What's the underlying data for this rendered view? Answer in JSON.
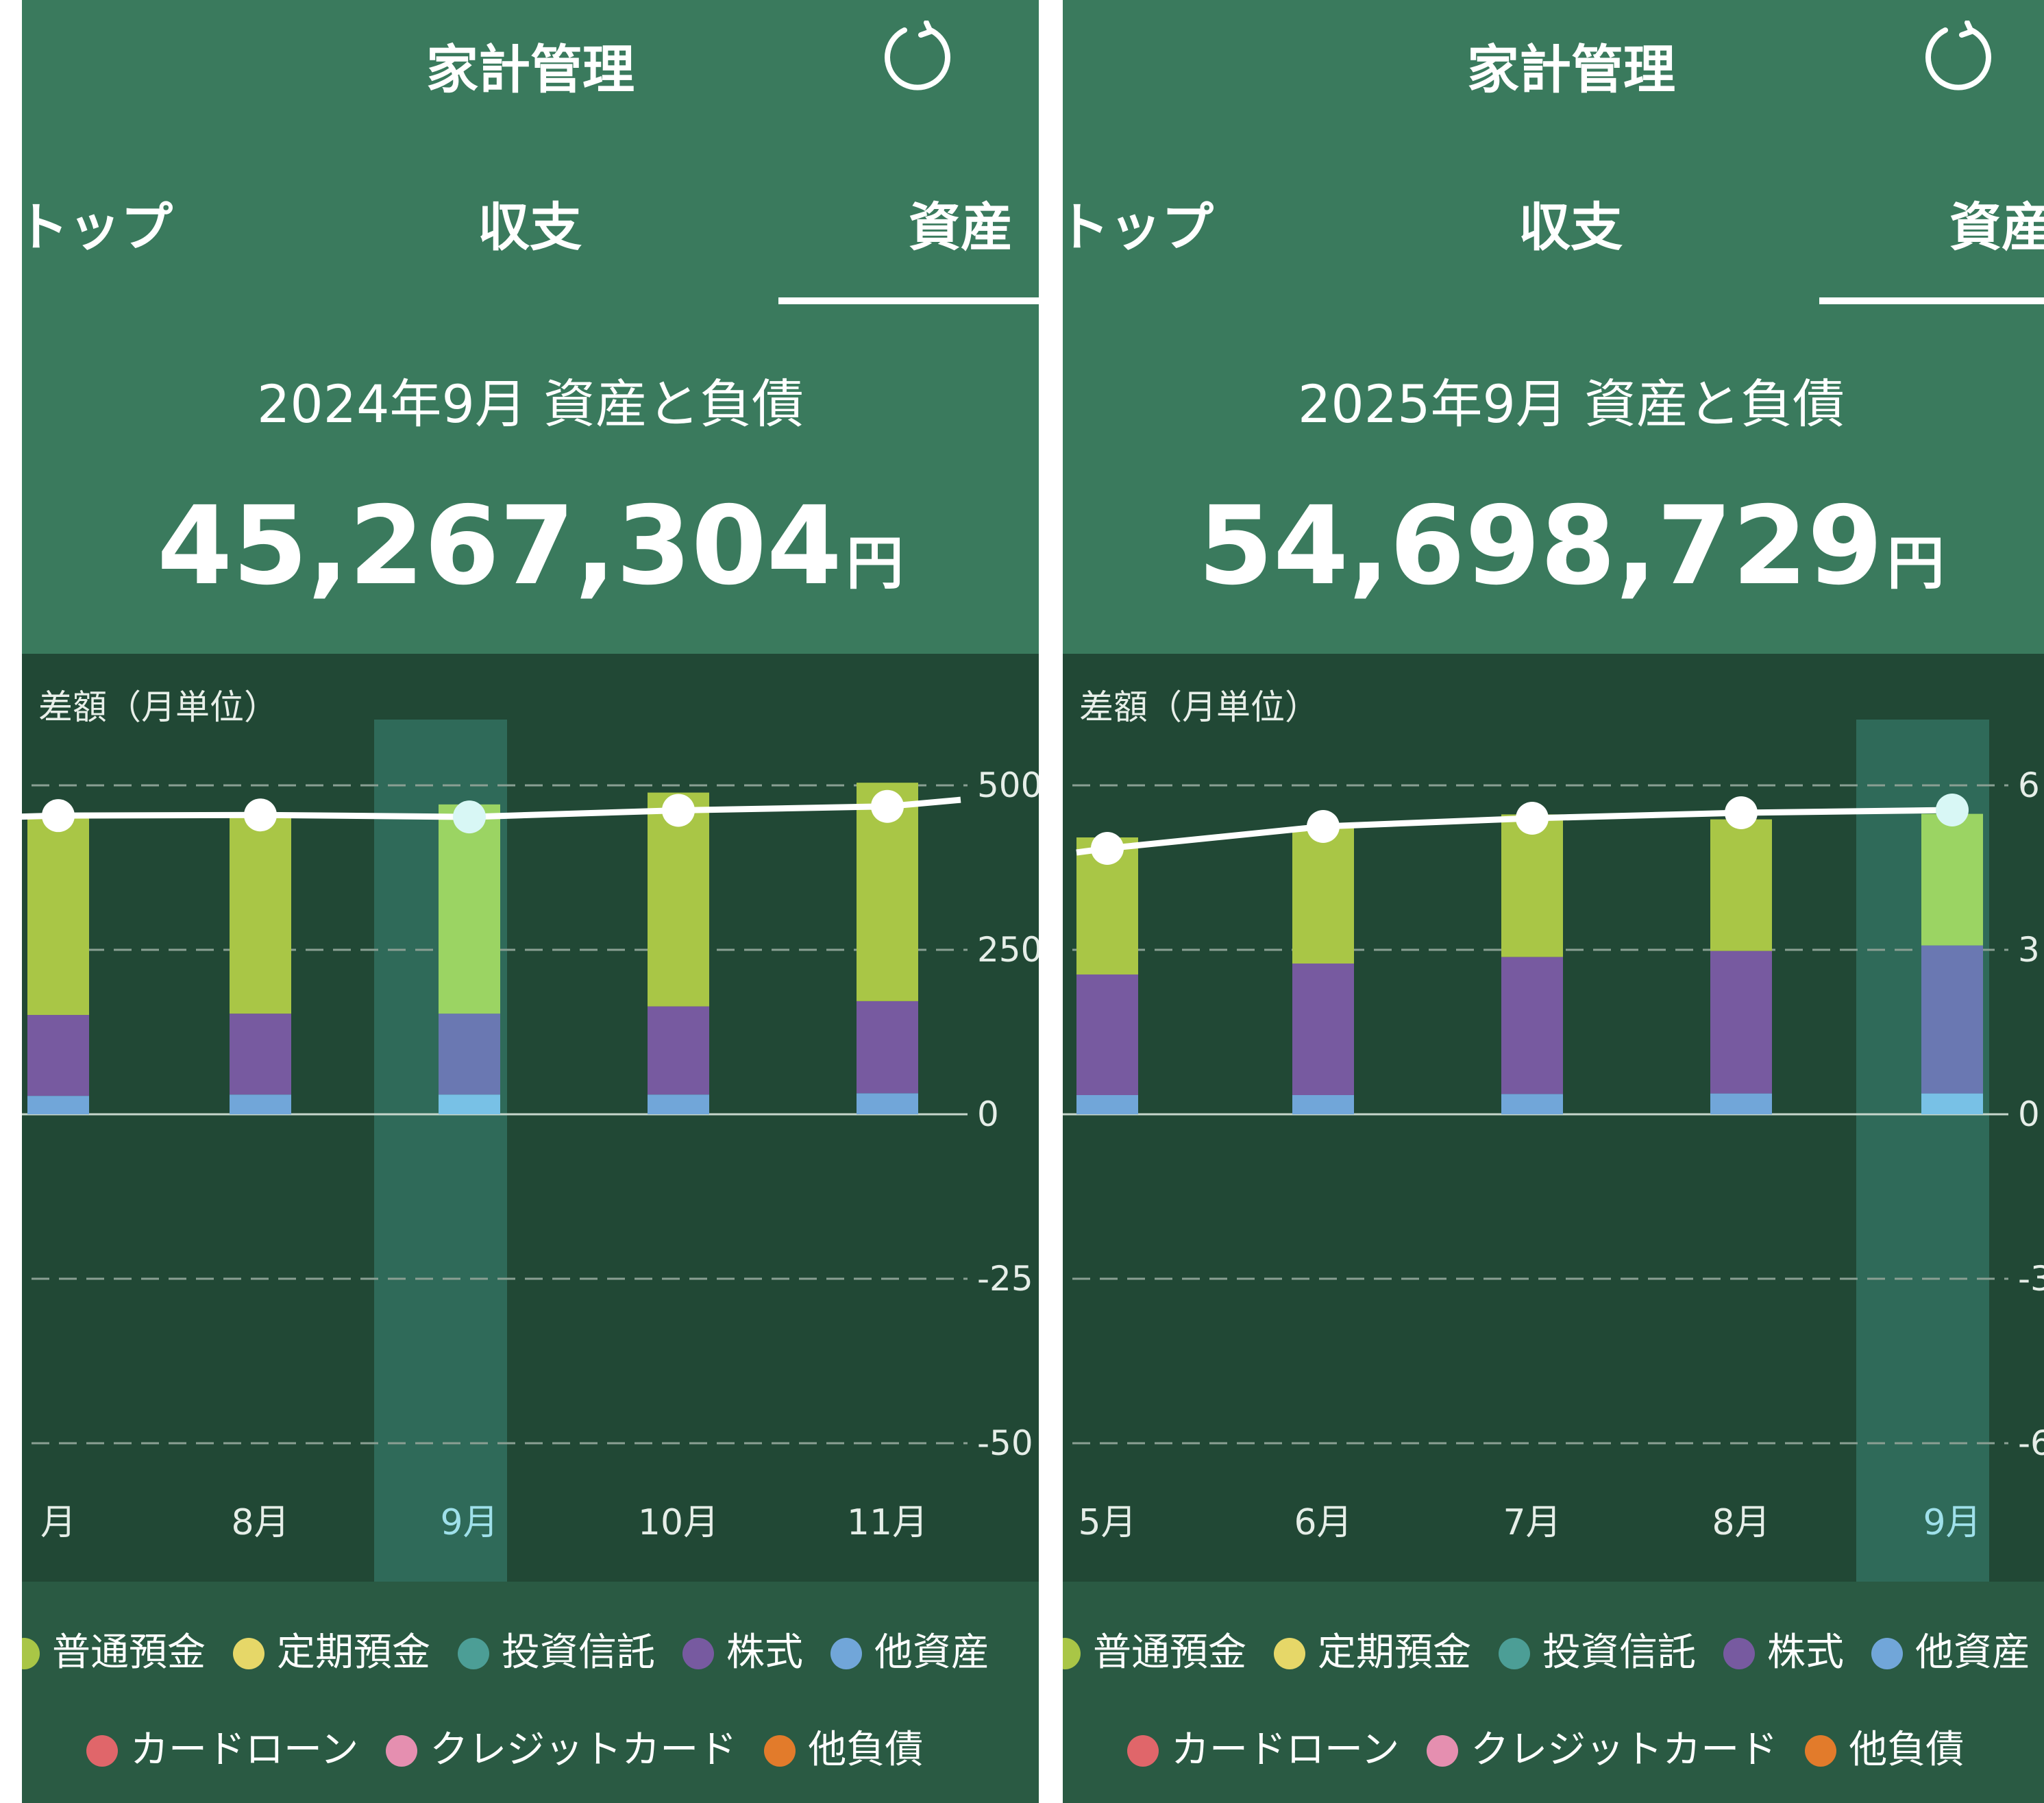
{
  "panels": [
    {
      "app_title": "家計管理",
      "refresh_icon": "refresh-icon",
      "tabs": [
        "トップ",
        "収支",
        "資産"
      ],
      "active_tab": "資産",
      "period_title": "2024年9月 資産と負債",
      "total_value": "45,267,304",
      "total_unit": "円",
      "chart_title": "差額（月単位）",
      "chart_data": {
        "type": "bar",
        "stacked": true,
        "categories": [
          "月",
          "8月",
          "9月",
          "10月",
          "11月"
        ],
        "selected_category": "9月",
        "y_tick_labels": [
          "500",
          "250",
          "0",
          "-25",
          "-50"
        ],
        "ylim": [
          -500,
          500
        ],
        "grid": true,
        "series": [
          {
            "name": "普通預金",
            "values": [
              304,
              300,
              318,
              325,
              332
            ]
          },
          {
            "name": "株式",
            "values": [
              123,
              123,
              123,
              134,
              140
            ]
          },
          {
            "name": "他資産",
            "values": [
              28,
              30,
              30,
              30,
              32
            ]
          }
        ],
        "line": {
          "values": [
            454,
            455,
            452,
            462,
            468
          ],
          "end_value": 478
        }
      }
    },
    {
      "app_title": "家計管理",
      "refresh_icon": "refresh-icon",
      "tabs": [
        "トップ",
        "収支",
        "資産"
      ],
      "active_tab": "資産",
      "period_title": "2025年9月 資産と負債",
      "total_value": "54,698,729",
      "total_unit": "円",
      "chart_title": "差額（月単位）",
      "chart_data": {
        "type": "bar",
        "stacked": true,
        "categories": [
          "5月",
          "6月",
          "7月",
          "8月",
          "9月"
        ],
        "selected_category": "9月",
        "y_tick_labels": [
          "6",
          "3",
          "0",
          "-3",
          "-6"
        ],
        "ylim": [
          -6,
          6
        ],
        "grid": true,
        "series": [
          {
            "name": "普通預金",
            "values": [
              2.5,
              2.5,
              2.6,
              2.4,
              2.4
            ]
          },
          {
            "name": "株式",
            "values": [
              2.2,
              2.4,
              2.5,
              2.6,
              2.7
            ]
          },
          {
            "name": "他資産",
            "values": [
              0.35,
              0.35,
              0.37,
              0.38,
              0.38
            ]
          }
        ],
        "line": {
          "values": [
            4.85,
            5.25,
            5.4,
            5.5,
            5.55
          ]
        }
      }
    }
  ],
  "legend_items": [
    {
      "label": "普通預金",
      "color": "#a9c646",
      "icon": "legend-dot-普通預金"
    },
    {
      "label": "定期預金",
      "color": "#e6d768",
      "icon": "legend-dot-定期預金"
    },
    {
      "label": "投資信託",
      "color": "#4c9e96",
      "icon": "legend-dot-投資信託"
    },
    {
      "label": "株式",
      "color": "#775aa0",
      "icon": "legend-dot-株式"
    },
    {
      "label": "他資産",
      "color": "#71a6d9",
      "icon": "legend-dot-他資産"
    },
    {
      "label": "カードローン",
      "color": "#e0666a",
      "icon": "legend-dot-カードローン"
    },
    {
      "label": "クレジットカード",
      "color": "#e58fb0",
      "icon": "legend-dot-クレジットカード"
    },
    {
      "label": "他負債",
      "color": "#e27b2b",
      "icon": "legend-dot-他負債"
    }
  ],
  "colors": {
    "header": "#3a7a5d",
    "chart_bg": "#214835",
    "legend_bg": "#2a5a43",
    "highlight_column": "#2f6a59",
    "selected_savings": "#9bd463",
    "selected_stocks": "#6a78b2",
    "selected_other": "#78c1e6",
    "selected_point": "#d8f7f5"
  }
}
